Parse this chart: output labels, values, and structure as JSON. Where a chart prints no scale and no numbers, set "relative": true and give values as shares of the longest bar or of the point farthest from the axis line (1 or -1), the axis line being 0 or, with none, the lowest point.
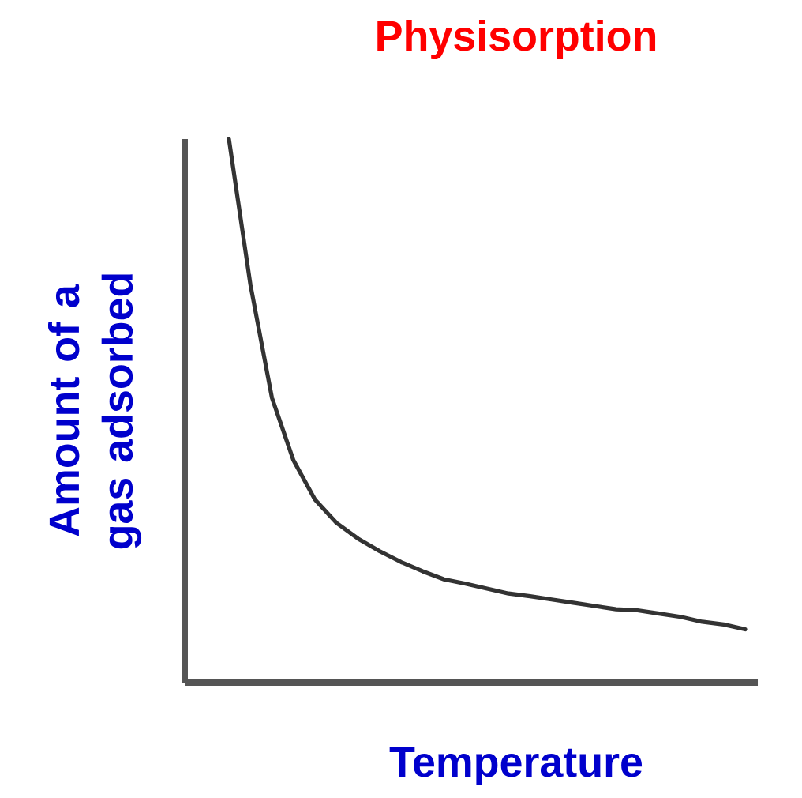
{
  "chart_data": {
    "type": "line",
    "title": "Physisorption",
    "xlabel": "Temperature",
    "ylabel": "Amount of a gas adsorbed",
    "relative": true,
    "categories": [
      null,
      null,
      null,
      null,
      null,
      null,
      null,
      null,
      null,
      null,
      null,
      null,
      null,
      null,
      null,
      null,
      null,
      null,
      null,
      null,
      null,
      null,
      null,
      null,
      null
    ],
    "series": [
      {
        "color": "#333333",
        "values": [
          1.0,
          0.732,
          0.524,
          0.409,
          0.337,
          0.294,
          0.265,
          0.242,
          0.222,
          0.205,
          0.19,
          0.182,
          0.173,
          0.164,
          0.159,
          0.153,
          0.147,
          0.141,
          0.135,
          0.133,
          0.127,
          0.121,
          0.112,
          0.107,
          0.098
        ]
      }
    ]
  }
}
